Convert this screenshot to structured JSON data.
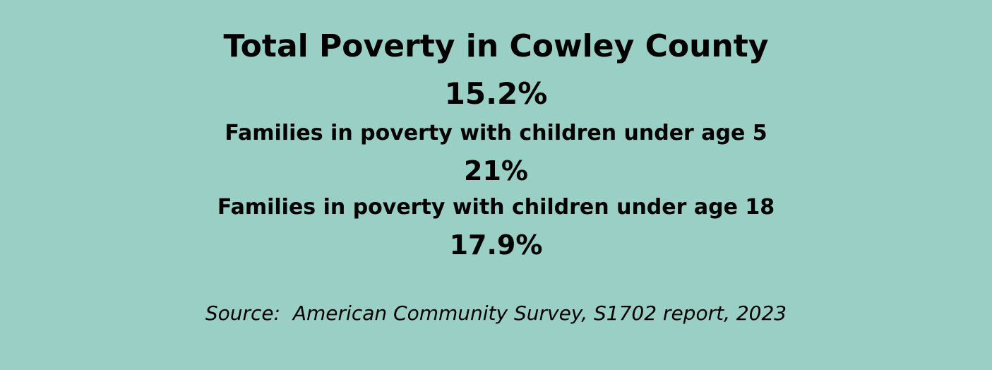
{
  "title": "Total Poverty in Cowley County",
  "total_poverty_value": "15.2%",
  "stats": [
    {
      "label": "Families in poverty with children under age 5",
      "value": "21%"
    },
    {
      "label": "Families in poverty with children under age 18",
      "value": "17.9%"
    }
  ],
  "source": "Source:  American Community Survey, S1702 report, 2023",
  "colors": {
    "background": "#99cfc5",
    "text": "#000000"
  }
}
